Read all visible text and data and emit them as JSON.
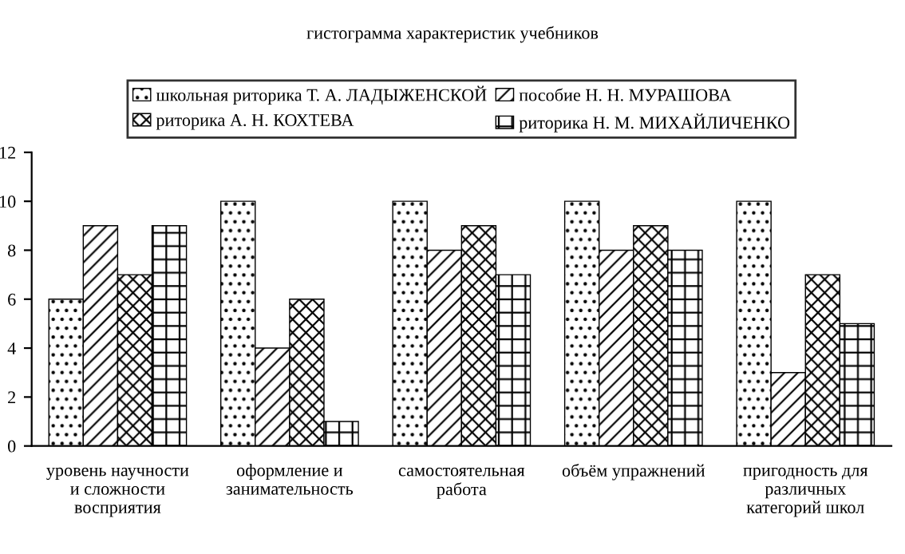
{
  "chart_data": {
    "type": "bar",
    "title": "гистограмма характеристик учебников",
    "categories": [
      "уровень научности\nи сложности\nвосприятия",
      "оформление и\nзанимательность",
      "самостоятельная\nработа",
      "объём упражнений",
      "пригодность для\nразличных\nкатегорий школ"
    ],
    "series": [
      {
        "name": "школьная риторика Т. А. ЛАДЫЖЕНСКОЙ",
        "color": "#000000",
        "values": [
          6,
          10,
          10,
          10,
          10
        ]
      },
      {
        "name": "пособие Н. Н. МУРАШОВА",
        "color": "#000000",
        "values": [
          9,
          4,
          8,
          8,
          3
        ]
      },
      {
        "name": "риторика А. Н. КОХТЕВА",
        "color": "#000000",
        "values": [
          7,
          6,
          9,
          9,
          7
        ]
      },
      {
        "name": "риторика Н. М. МИХАЙЛИЧЕНКО",
        "color": "#000000",
        "values": [
          9,
          1,
          7,
          8,
          5
        ]
      }
    ],
    "ylim": [
      0,
      12
    ],
    "yticks": [
      0,
      2,
      4,
      6,
      8,
      10,
      12
    ],
    "grid": false,
    "legend": "top"
  }
}
